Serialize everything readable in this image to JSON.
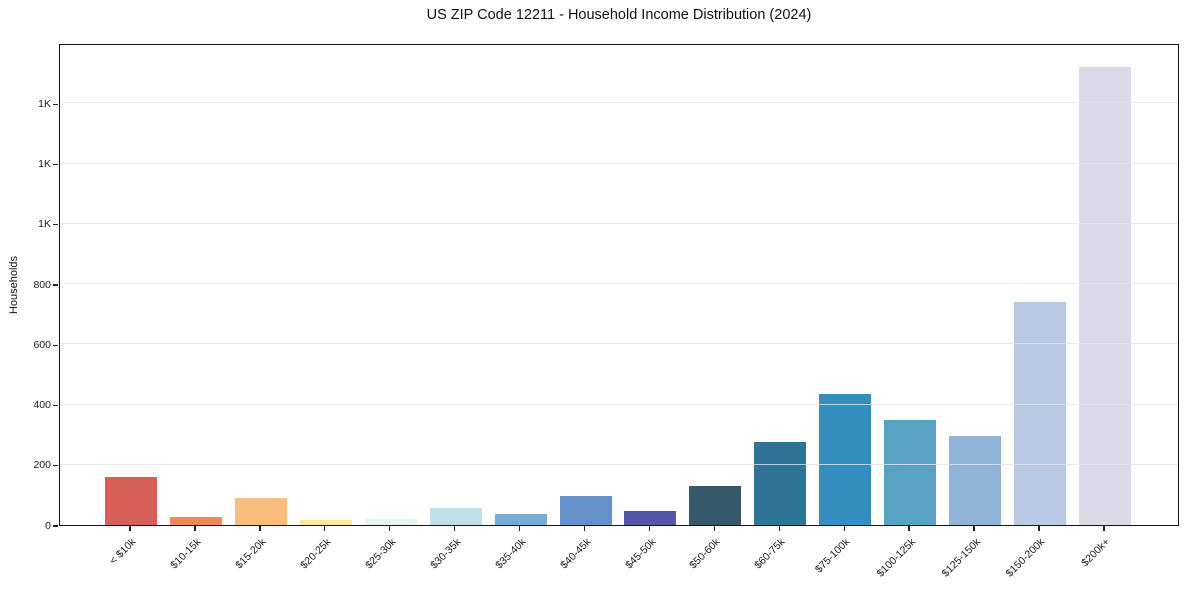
{
  "figure": {
    "background_color": "#ffffff",
    "text_color": "#1a1a1a"
  },
  "chart_data": {
    "type": "bar",
    "title": "US ZIP Code 12211 - Household Income Distribution (2024)",
    "xlabel": "",
    "ylabel": "Households",
    "categories": [
      "< $10k",
      "$10-15k",
      "$15-20k",
      "$20-25k",
      "$25-30k",
      "$30-35k",
      "$35-40k",
      "$40-45k",
      "$45-50k",
      "$50-60k",
      "$60-75k",
      "$75-100k",
      "$100-125k",
      "$125-150k",
      "$150-200k",
      "$200k+"
    ],
    "values": [
      160,
      25,
      90,
      15,
      20,
      55,
      35,
      95,
      45,
      130,
      275,
      435,
      350,
      295,
      740,
      1520
    ],
    "bar_colors": [
      "#d65f57",
      "#f0875f",
      "#fabd7e",
      "#f9e4a0",
      "#e6f1f1",
      "#bfdfe9",
      "#7aabd4",
      "#6590c8",
      "#5356ab",
      "#36586b",
      "#2f7397",
      "#348ec0",
      "#58a0c4",
      "#8fb4d8",
      "#b7c9e3",
      "#d9dae8"
    ],
    "ylim": [
      0,
      1600
    ],
    "yticks": [
      {
        "value": 0,
        "label": "0"
      },
      {
        "value": 200,
        "label": "200"
      },
      {
        "value": 400,
        "label": "400"
      },
      {
        "value": 600,
        "label": "600"
      },
      {
        "value": 800,
        "label": "800"
      },
      {
        "value": 1000,
        "label": "1K"
      },
      {
        "value": 1200,
        "label": "1K"
      },
      {
        "value": 1400,
        "label": "1K"
      }
    ],
    "grid": "horizontal",
    "legend": false
  }
}
